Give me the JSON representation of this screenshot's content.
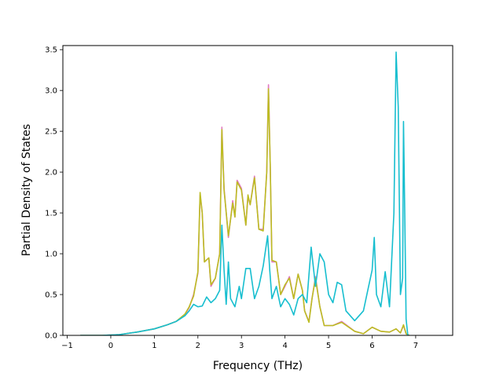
{
  "chart_data": {
    "type": "line",
    "title": "",
    "xlabel": "Frequency (THz)",
    "ylabel": "Partial Density of States",
    "xlim": [
      -1.1,
      7.85
    ],
    "ylim": [
      0,
      3.55
    ],
    "grid": false,
    "legend": "none",
    "xticks": [
      -1,
      0,
      1,
      2,
      3,
      4,
      5,
      6,
      7
    ],
    "xtick_labels": [
      "−1",
      "0",
      "1",
      "2",
      "3",
      "4",
      "5",
      "6",
      "7"
    ],
    "yticks": [
      0.0,
      0.5,
      1.0,
      1.5,
      2.0,
      2.5,
      3.0,
      3.5
    ],
    "ytick_labels": [
      "0.0",
      "0.5",
      "1.0",
      "1.5",
      "2.0",
      "2.5",
      "3.0",
      "3.5"
    ],
    "series": [
      {
        "color": "#e377c2",
        "points": [
          [
            -0.7,
            0
          ],
          [
            -0.2,
            0
          ],
          [
            0.2,
            0.01
          ],
          [
            0.6,
            0.04
          ],
          [
            1.0,
            0.08
          ],
          [
            1.3,
            0.13
          ],
          [
            1.5,
            0.17
          ],
          [
            1.7,
            0.25
          ],
          [
            1.8,
            0.34
          ],
          [
            1.9,
            0.5
          ],
          [
            2.0,
            0.76
          ],
          [
            2.05,
            1.72
          ],
          [
            2.1,
            1.5
          ],
          [
            2.15,
            0.9
          ],
          [
            2.25,
            0.95
          ],
          [
            2.3,
            0.6
          ],
          [
            2.4,
            0.7
          ],
          [
            2.5,
            1.0
          ],
          [
            2.55,
            2.55
          ],
          [
            2.6,
            1.8
          ],
          [
            2.7,
            1.2
          ],
          [
            2.8,
            1.65
          ],
          [
            2.85,
            1.45
          ],
          [
            2.9,
            1.9
          ],
          [
            3.0,
            1.8
          ],
          [
            3.1,
            1.35
          ],
          [
            3.15,
            1.7
          ],
          [
            3.2,
            1.6
          ],
          [
            3.3,
            1.95
          ],
          [
            3.4,
            1.3
          ],
          [
            3.5,
            1.3
          ],
          [
            3.58,
            2.0
          ],
          [
            3.62,
            3.07
          ],
          [
            3.66,
            2.1
          ],
          [
            3.7,
            0.9
          ],
          [
            3.8,
            0.9
          ],
          [
            3.9,
            0.5
          ],
          [
            4.0,
            0.6
          ],
          [
            4.1,
            0.72
          ],
          [
            4.2,
            0.45
          ],
          [
            4.3,
            0.75
          ],
          [
            4.4,
            0.55
          ],
          [
            4.45,
            0.3
          ],
          [
            4.55,
            0.17
          ],
          [
            4.62,
            0.45
          ],
          [
            4.7,
            0.72
          ],
          [
            4.8,
            0.35
          ],
          [
            4.9,
            0.12
          ],
          [
            5.1,
            0.12
          ],
          [
            5.3,
            0.17
          ],
          [
            5.6,
            0.05
          ],
          [
            5.8,
            0.02
          ],
          [
            6.0,
            0.1
          ],
          [
            6.2,
            0.05
          ],
          [
            6.4,
            0.04
          ],
          [
            6.55,
            0.08
          ],
          [
            6.65,
            0.03
          ],
          [
            6.72,
            0.12
          ],
          [
            6.78,
            0.02
          ],
          [
            6.85,
            0
          ]
        ]
      },
      {
        "color": "#bcbd22",
        "points": [
          [
            -0.7,
            0
          ],
          [
            -0.2,
            0
          ],
          [
            0.2,
            0.01
          ],
          [
            0.6,
            0.04
          ],
          [
            1.0,
            0.08
          ],
          [
            1.3,
            0.13
          ],
          [
            1.5,
            0.17
          ],
          [
            1.7,
            0.26
          ],
          [
            1.8,
            0.35
          ],
          [
            1.9,
            0.48
          ],
          [
            2.0,
            0.78
          ],
          [
            2.05,
            1.75
          ],
          [
            2.1,
            1.5
          ],
          [
            2.15,
            0.9
          ],
          [
            2.25,
            0.95
          ],
          [
            2.3,
            0.62
          ],
          [
            2.4,
            0.7
          ],
          [
            2.5,
            1.0
          ],
          [
            2.55,
            2.52
          ],
          [
            2.6,
            1.78
          ],
          [
            2.7,
            1.22
          ],
          [
            2.8,
            1.62
          ],
          [
            2.85,
            1.45
          ],
          [
            2.9,
            1.88
          ],
          [
            3.0,
            1.78
          ],
          [
            3.1,
            1.35
          ],
          [
            3.15,
            1.72
          ],
          [
            3.2,
            1.6
          ],
          [
            3.3,
            1.93
          ],
          [
            3.4,
            1.3
          ],
          [
            3.5,
            1.28
          ],
          [
            3.58,
            2.0
          ],
          [
            3.62,
            3.02
          ],
          [
            3.66,
            2.1
          ],
          [
            3.7,
            0.92
          ],
          [
            3.8,
            0.9
          ],
          [
            3.9,
            0.5
          ],
          [
            4.0,
            0.62
          ],
          [
            4.1,
            0.7
          ],
          [
            4.2,
            0.45
          ],
          [
            4.3,
            0.75
          ],
          [
            4.4,
            0.55
          ],
          [
            4.45,
            0.3
          ],
          [
            4.55,
            0.16
          ],
          [
            4.62,
            0.45
          ],
          [
            4.7,
            0.7
          ],
          [
            4.8,
            0.35
          ],
          [
            4.9,
            0.12
          ],
          [
            5.1,
            0.12
          ],
          [
            5.3,
            0.16
          ],
          [
            5.6,
            0.05
          ],
          [
            5.8,
            0.02
          ],
          [
            6.0,
            0.1
          ],
          [
            6.2,
            0.05
          ],
          [
            6.4,
            0.04
          ],
          [
            6.55,
            0.08
          ],
          [
            6.65,
            0.03
          ],
          [
            6.72,
            0.13
          ],
          [
            6.78,
            0.02
          ],
          [
            6.85,
            0
          ]
        ]
      },
      {
        "color": "#17becf",
        "points": [
          [
            -0.7,
            0
          ],
          [
            -0.2,
            0
          ],
          [
            0.2,
            0.01
          ],
          [
            0.6,
            0.04
          ],
          [
            1.0,
            0.08
          ],
          [
            1.3,
            0.13
          ],
          [
            1.5,
            0.17
          ],
          [
            1.7,
            0.24
          ],
          [
            1.8,
            0.3
          ],
          [
            1.9,
            0.38
          ],
          [
            2.0,
            0.35
          ],
          [
            2.1,
            0.36
          ],
          [
            2.2,
            0.47
          ],
          [
            2.3,
            0.4
          ],
          [
            2.4,
            0.45
          ],
          [
            2.5,
            0.55
          ],
          [
            2.55,
            1.35
          ],
          [
            2.6,
            0.8
          ],
          [
            2.65,
            0.38
          ],
          [
            2.7,
            0.9
          ],
          [
            2.75,
            0.45
          ],
          [
            2.85,
            0.35
          ],
          [
            2.95,
            0.6
          ],
          [
            3.0,
            0.45
          ],
          [
            3.1,
            0.82
          ],
          [
            3.2,
            0.82
          ],
          [
            3.3,
            0.45
          ],
          [
            3.4,
            0.6
          ],
          [
            3.5,
            0.85
          ],
          [
            3.6,
            1.22
          ],
          [
            3.65,
            0.8
          ],
          [
            3.7,
            0.45
          ],
          [
            3.8,
            0.6
          ],
          [
            3.9,
            0.35
          ],
          [
            4.0,
            0.45
          ],
          [
            4.1,
            0.38
          ],
          [
            4.2,
            0.25
          ],
          [
            4.3,
            0.45
          ],
          [
            4.4,
            0.5
          ],
          [
            4.5,
            0.4
          ],
          [
            4.6,
            1.08
          ],
          [
            4.7,
            0.6
          ],
          [
            4.8,
            1.0
          ],
          [
            4.9,
            0.9
          ],
          [
            5.0,
            0.5
          ],
          [
            5.1,
            0.4
          ],
          [
            5.2,
            0.65
          ],
          [
            5.3,
            0.62
          ],
          [
            5.4,
            0.3
          ],
          [
            5.6,
            0.18
          ],
          [
            5.8,
            0.3
          ],
          [
            5.9,
            0.55
          ],
          [
            6.0,
            0.8
          ],
          [
            6.05,
            1.2
          ],
          [
            6.1,
            0.5
          ],
          [
            6.2,
            0.35
          ],
          [
            6.3,
            0.78
          ],
          [
            6.4,
            0.35
          ],
          [
            6.5,
            1.5
          ],
          [
            6.55,
            3.47
          ],
          [
            6.6,
            2.8
          ],
          [
            6.65,
            0.5
          ],
          [
            6.7,
            0.7
          ],
          [
            6.72,
            2.62
          ],
          [
            6.75,
            1.5
          ],
          [
            6.78,
            0.2
          ],
          [
            6.82,
            0
          ]
        ]
      }
    ]
  }
}
